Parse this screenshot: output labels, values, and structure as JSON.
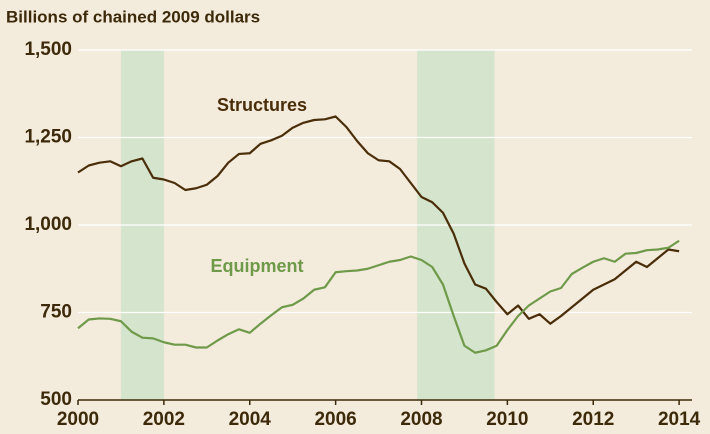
{
  "chart_data": {
    "type": "line",
    "y_axis_label": "Billions of chained 2009 dollars",
    "x": [
      2000,
      2000.25,
      2000.5,
      2000.75,
      2001,
      2001.25,
      2001.5,
      2001.75,
      2002,
      2002.25,
      2002.5,
      2002.75,
      2003,
      2003.25,
      2003.5,
      2003.75,
      2004,
      2004.25,
      2004.5,
      2004.75,
      2005,
      2005.25,
      2005.5,
      2005.75,
      2006,
      2006.25,
      2006.5,
      2006.75,
      2007,
      2007.25,
      2007.5,
      2007.75,
      2008,
      2008.25,
      2008.5,
      2008.75,
      2009,
      2009.25,
      2009.5,
      2009.75,
      2010,
      2010.25,
      2010.5,
      2010.75,
      2011,
      2011.25,
      2011.5,
      2011.75,
      2012,
      2012.25,
      2012.5,
      2012.75,
      2013,
      2013.25,
      2013.5,
      2013.75,
      2014
    ],
    "series": [
      {
        "name": "Structures",
        "color": "#4a2e0a",
        "values": [
          1150,
          1170,
          1178,
          1182,
          1168,
          1182,
          1190,
          1135,
          1130,
          1120,
          1100,
          1105,
          1115,
          1140,
          1178,
          1203,
          1205,
          1232,
          1242,
          1255,
          1278,
          1292,
          1300,
          1302,
          1310,
          1280,
          1240,
          1205,
          1185,
          1182,
          1160,
          1120,
          1080,
          1065,
          1035,
          975,
          890,
          830,
          818,
          780,
          745,
          770,
          732,
          745,
          718,
          740,
          765,
          790,
          815,
          830,
          845,
          870,
          895,
          880,
          905,
          930,
          925
        ]
      },
      {
        "name": "Equipment",
        "color": "#6f9a4a",
        "values": [
          705,
          730,
          733,
          732,
          725,
          695,
          678,
          676,
          665,
          658,
          658,
          650,
          650,
          670,
          688,
          702,
          692,
          718,
          742,
          765,
          772,
          790,
          815,
          822,
          865,
          868,
          870,
          875,
          885,
          895,
          900,
          910,
          900,
          880,
          830,
          740,
          655,
          635,
          642,
          655,
          700,
          740,
          770,
          790,
          810,
          820,
          860,
          878,
          895,
          905,
          895,
          918,
          920,
          928,
          930,
          935,
          955
        ]
      }
    ],
    "shaded_ranges": [
      [
        2001,
        2002
      ],
      [
        2007.9,
        2009.7
      ]
    ],
    "shade_color": "#d5e4cc",
    "xlim": [
      2000,
      2014.3
    ],
    "xticks": [
      2000,
      2002,
      2004,
      2006,
      2008,
      2010,
      2012,
      2014
    ],
    "ylim": [
      500,
      1500
    ],
    "yticks": [
      500,
      750,
      {
        "value": 1000,
        "label": "1,000"
      },
      {
        "value": 1250,
        "label": "1,250"
      },
      {
        "value": 1500,
        "label": "1,500"
      }
    ],
    "grid": true
  }
}
